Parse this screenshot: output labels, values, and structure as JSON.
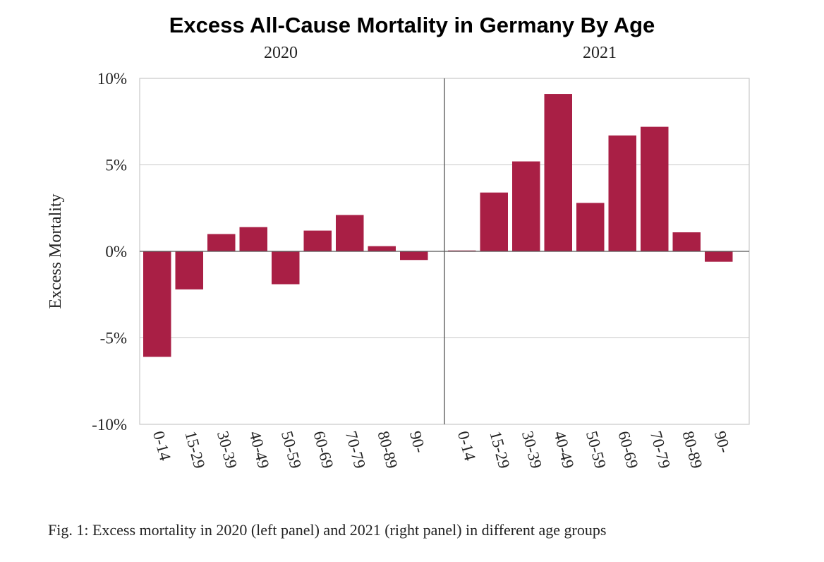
{
  "title": "Excess All-Cause Mortality in Germany By Age",
  "caption": "Fig. 1: Excess mortality in 2020 (left panel) and 2021 (right panel) in different age groups",
  "chart_data": {
    "type": "bar",
    "ylabel": "Excess Mortality",
    "ylim": [
      -10,
      10
    ],
    "yticks": [
      10,
      5,
      0,
      -5,
      -10
    ],
    "ytick_labels": [
      "10%",
      "5%",
      "0%",
      "-5%",
      "-10%"
    ],
    "grid": true,
    "bar_color": "#a91f45",
    "categories": [
      "0-14",
      "15-29",
      "30-39",
      "40-49",
      "50-59",
      "60-69",
      "70-79",
      "80-89",
      "90-"
    ],
    "panels": [
      {
        "title": "2020",
        "values": [
          -6.1,
          -2.2,
          1.0,
          1.4,
          -1.9,
          1.2,
          2.1,
          0.3,
          -0.5
        ]
      },
      {
        "title": "2021",
        "values": [
          0.05,
          3.4,
          5.2,
          9.1,
          2.8,
          6.7,
          7.2,
          1.1,
          -0.6
        ]
      }
    ]
  }
}
